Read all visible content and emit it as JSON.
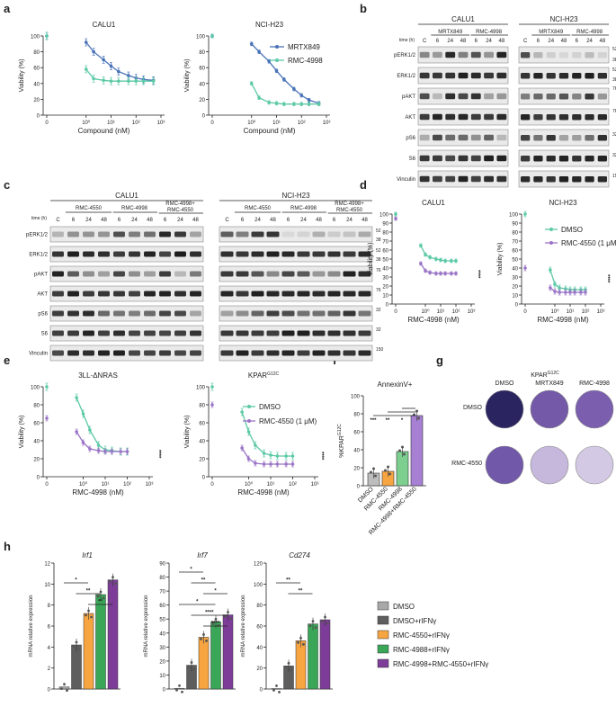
{
  "panels": [
    "a",
    "b",
    "c",
    "d",
    "e",
    "f",
    "g",
    "h"
  ],
  "colors": {
    "blue": "#4a73b8",
    "green": "#5cc9a7",
    "purple": "#9a74c7",
    "gray": "#a8a8a8",
    "darkgray": "#5e5e5e",
    "orange": "#f7a541",
    "teal": "#3cb377",
    "violet": "#7d3c98"
  },
  "panel_a": {
    "left_title": "CALU1",
    "right_title": "NCI-H23",
    "ylabel": "Viability (%)",
    "xlabel": "Compound (nM)",
    "yticks": [
      "0",
      "20",
      "40",
      "60",
      "80",
      "100"
    ],
    "xticks": [
      "0",
      "10⁰",
      "10¹",
      "10²",
      "10³"
    ],
    "legend": [
      "MRTX849",
      "RMC-4998"
    ]
  },
  "panel_b": {
    "left_title": "CALU1",
    "right_title": "NCI-H23",
    "time_label": "time (h)",
    "drug1": "MRTX849",
    "drug2": "RMC-4998",
    "lanes": [
      "C",
      "6",
      "24",
      "48",
      "6",
      "24",
      "48"
    ],
    "rows": [
      "pERK1/2",
      "ERK1/2",
      "pAKT",
      "AKT",
      "pS6",
      "S6",
      "Vinculin"
    ],
    "mw": [
      "52",
      "38",
      "52",
      "38",
      "76",
      "76",
      "32",
      "32",
      "150"
    ]
  },
  "panel_c": {
    "left_title": "CALU1",
    "right_title": "NCI-H23",
    "time_label": "time (h)",
    "groups": [
      "RMC-4550",
      "RMC-4998",
      "RMC-4998+\nRMC-4550"
    ],
    "group3_line1": "RMC-4998+",
    "group3_line2": "RMC-4550",
    "lanes": [
      "C",
      "6",
      "24",
      "48",
      "6",
      "24",
      "48",
      "6",
      "24",
      "48"
    ],
    "rows": [
      "pERK1/2",
      "ERK1/2",
      "pAKT",
      "AKT",
      "pS6",
      "S6",
      "Vinculin"
    ],
    "mw": [
      "52",
      "38",
      "52",
      "38",
      "76",
      "76",
      "32",
      "32",
      "150"
    ]
  },
  "panel_d": {
    "left_title": "CALU1",
    "right_title": "NCI-H23",
    "ylabel": "Viability (%)",
    "xlabel": "RMC-4998 (nM)",
    "yticks": [
      "0",
      "10",
      "20",
      "30",
      "40",
      "50",
      "60",
      "70",
      "80",
      "90",
      "100"
    ],
    "xticks": [
      "0",
      "10⁰",
      "10¹",
      "10²",
      "10³"
    ],
    "legend": [
      "DMSO",
      "RMC-4550 (1 μM)"
    ],
    "sig": "****"
  },
  "panel_e": {
    "left_title": "3LL-ΔNRAS",
    "right_title": "KPAR",
    "right_title_sup": "G12C",
    "ylabel": "Viability (%)",
    "xlabel": "RMC-4998 (nM)",
    "yticks": [
      "0",
      "20",
      "40",
      "60",
      "80",
      "100"
    ],
    "xticks": [
      "0",
      "10⁰",
      "10¹",
      "10²",
      "10³"
    ],
    "legend": [
      "DMSO",
      "RMC-4550 (1 μM)"
    ],
    "sig": "****"
  },
  "panel_f": {
    "title": "AnnexinV+",
    "ylabel": "%KPAR",
    "ylabel_sup": "G12C",
    "yticks": [
      "0",
      "20",
      "40",
      "60",
      "80",
      "100"
    ],
    "categories": [
      "DMSO",
      "RMC-4550",
      "RMC-4998",
      "RMC-4998+RMC-4550"
    ],
    "values": [
      14,
      16,
      38,
      78
    ],
    "sig": [
      "***",
      "**",
      "*"
    ]
  },
  "panel_g": {
    "title": "KPAR",
    "title_sup": "G12C",
    "cols": [
      "DMSO",
      "MRTX849",
      "RMC-4998"
    ],
    "rows": [
      "DMSO",
      "RMC-4550"
    ]
  },
  "panel_h": {
    "ylabel": "mRNA relative expression",
    "charts": [
      {
        "title": "Irf1",
        "yticks": [
          "0",
          "2",
          "4",
          "6",
          "8",
          "10",
          "12"
        ],
        "values": [
          0.2,
          4.2,
          7.2,
          9.0,
          10.4
        ],
        "sig": [
          "*",
          "**",
          "**"
        ]
      },
      {
        "title": "Irf7",
        "yticks": [
          "0",
          "10",
          "20",
          "30",
          "40",
          "50",
          "60",
          "70",
          "80",
          "90"
        ],
        "values": [
          0.5,
          17,
          37,
          48,
          53
        ],
        "sig": [
          "*",
          "**",
          "*",
          "*",
          "****",
          "****"
        ]
      },
      {
        "title": "Cd274",
        "yticks": [
          "0",
          "20",
          "40",
          "60",
          "80",
          "100",
          "120"
        ],
        "values": [
          0.5,
          22,
          46,
          62,
          66
        ],
        "sig": [
          "**",
          "**"
        ]
      }
    ],
    "legend": [
      "DMSO",
      "DMSO+rIFNγ",
      "RMC-4550+rIFNγ",
      "RMC-4988+rIFNγ",
      "RMC-4998+RMC-4550+rIFNγ"
    ]
  },
  "chart_data": [
    {
      "type": "line",
      "title": "CALU1",
      "xlabel": "Compound (nM)",
      "ylabel": "Viability (%)",
      "ylim": [
        0,
        110
      ],
      "x": [
        0,
        1,
        2,
        5,
        10,
        20,
        50,
        100,
        200,
        500
      ],
      "series": [
        {
          "name": "MRTX849",
          "values": [
            100,
            92,
            80,
            70,
            62,
            55,
            50,
            47,
            45,
            44
          ]
        },
        {
          "name": "RMC-4998",
          "values": [
            100,
            58,
            46,
            44,
            43,
            43,
            43,
            43,
            43,
            43
          ]
        }
      ]
    },
    {
      "type": "line",
      "title": "NCI-H23",
      "xlabel": "Compound (nM)",
      "ylabel": "Viability (%)",
      "ylim": [
        0,
        110
      ],
      "x": [
        0,
        1,
        2,
        5,
        10,
        20,
        50,
        100,
        200,
        500
      ],
      "series": [
        {
          "name": "MRTX849",
          "values": [
            100,
            90,
            80,
            68,
            56,
            45,
            33,
            25,
            19,
            15
          ]
        },
        {
          "name": "RMC-4998",
          "values": [
            100,
            40,
            22,
            16,
            15,
            14,
            14,
            14,
            14,
            14
          ]
        }
      ]
    },
    {
      "type": "line",
      "title": "CALU1 (d)",
      "xlabel": "RMC-4998 (nM)",
      "ylabel": "Viability (%)",
      "ylim": [
        0,
        105
      ],
      "x": [
        0,
        0.5,
        1,
        2,
        5,
        10,
        20,
        50,
        100
      ],
      "series": [
        {
          "name": "DMSO",
          "values": [
            100,
            65,
            55,
            52,
            50,
            49,
            48,
            48,
            48
          ]
        },
        {
          "name": "RMC-4550 (1 μM)",
          "values": [
            95,
            45,
            37,
            35,
            34,
            34,
            34,
            34,
            34
          ]
        }
      ]
    },
    {
      "type": "line",
      "title": "NCI-H23 (d)",
      "xlabel": "RMC-4998 (nM)",
      "ylabel": "Viability (%)",
      "ylim": [
        0,
        105
      ],
      "x": [
        0,
        0.5,
        1,
        2,
        5,
        10,
        20,
        50,
        100
      ],
      "series": [
        {
          "name": "DMSO",
          "values": [
            100,
            38,
            22,
            18,
            17,
            16,
            16,
            16,
            16
          ]
        },
        {
          "name": "RMC-4550 (1 μM)",
          "values": [
            40,
            18,
            14,
            13,
            13,
            13,
            13,
            13,
            13
          ]
        }
      ]
    },
    {
      "type": "line",
      "title": "3LL-ΔNRAS",
      "xlabel": "RMC-4998 (nM)",
      "ylabel": "Viability (%)",
      "ylim": [
        0,
        110
      ],
      "x": [
        0,
        0.5,
        1,
        2,
        5,
        10,
        20,
        50,
        100
      ],
      "series": [
        {
          "name": "DMSO",
          "values": [
            100,
            88,
            70,
            52,
            35,
            30,
            29,
            28,
            28
          ]
        },
        {
          "name": "RMC-4550 (1 μM)",
          "values": [
            65,
            50,
            38,
            31,
            29,
            28,
            28,
            28,
            28
          ]
        }
      ]
    },
    {
      "type": "line",
      "title": "KPAR G12C",
      "xlabel": "RMC-4998 (nM)",
      "ylabel": "Viability (%)",
      "ylim": [
        0,
        110
      ],
      "x": [
        0,
        0.5,
        1,
        2,
        5,
        10,
        20,
        50,
        100
      ],
      "series": [
        {
          "name": "DMSO",
          "values": [
            100,
            72,
            50,
            35,
            26,
            24,
            23,
            23,
            23
          ]
        },
        {
          "name": "RMC-4550 (1 μM)",
          "values": [
            80,
            32,
            20,
            15,
            14,
            14,
            14,
            14,
            14
          ]
        }
      ]
    },
    {
      "type": "bar",
      "title": "AnnexinV+",
      "ylabel": "%KPAR G12C",
      "ylim": [
        0,
        100
      ],
      "categories": [
        "DMSO",
        "RMC-4550",
        "RMC-4998",
        "RMC-4998+RMC-4550"
      ],
      "values": [
        14,
        16,
        38,
        78
      ]
    },
    {
      "type": "bar",
      "title": "Irf1",
      "ylabel": "mRNA relative expression",
      "ylim": [
        0,
        12
      ],
      "categories": [
        "DMSO",
        "DMSO+rIFNγ",
        "RMC-4550+rIFNγ",
        "RMC-4988+rIFNγ",
        "RMC-4998+RMC-4550+rIFNγ"
      ],
      "values": [
        0.2,
        4.2,
        7.2,
        9.0,
        10.4
      ]
    },
    {
      "type": "bar",
      "title": "Irf7",
      "ylabel": "mRNA relative expression",
      "ylim": [
        0,
        90
      ],
      "categories": [
        "DMSO",
        "DMSO+rIFNγ",
        "RMC-4550+rIFNγ",
        "RMC-4988+rIFNγ",
        "RMC-4998+RMC-4550+rIFNγ"
      ],
      "values": [
        0.5,
        17,
        37,
        48,
        53
      ]
    },
    {
      "type": "bar",
      "title": "Cd274",
      "ylabel": "mRNA relative expression",
      "ylim": [
        0,
        120
      ],
      "categories": [
        "DMSO",
        "DMSO+rIFNγ",
        "RMC-4550+rIFNγ",
        "RMC-4988+rIFNγ",
        "RMC-4998+RMC-4550+rIFNγ"
      ],
      "values": [
        0.5,
        22,
        46,
        62,
        66
      ]
    }
  ]
}
